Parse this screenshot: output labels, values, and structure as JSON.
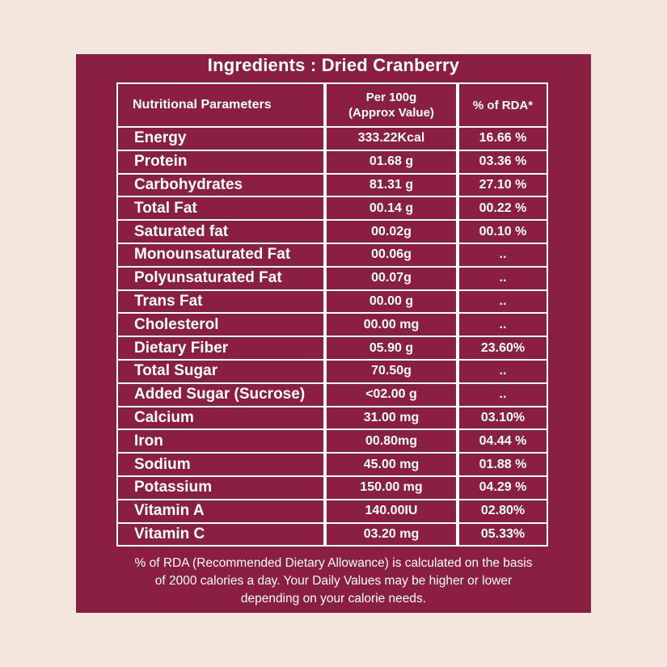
{
  "title": "Ingredients : Dried Cranberry",
  "headers": {
    "parameter": "Nutritional Parameters",
    "value_line1": "Per 100g",
    "value_line2": "(Approx Value)",
    "rda": "% of RDA*"
  },
  "rows": [
    {
      "name": "Energy",
      "value": "333.22Kcal",
      "rda": "16.66 %"
    },
    {
      "name": "Protein",
      "value": "01.68 g",
      "rda": "03.36 %"
    },
    {
      "name": "Carbohydrates",
      "value": "81.31 g",
      "rda": "27.10 %"
    },
    {
      "name": "Total Fat",
      "value": "00.14 g",
      "rda": "00.22 %"
    },
    {
      "name": "Saturated fat",
      "value": "00.02g",
      "rda": "00.10 %"
    },
    {
      "name": "Monounsaturated Fat",
      "value": "00.06g",
      "rda": ".."
    },
    {
      "name": "Polyunsaturated Fat",
      "value": "00.07g",
      "rda": ".."
    },
    {
      "name": "Trans Fat",
      "value": "00.00 g",
      "rda": ".."
    },
    {
      "name": "Cholesterol",
      "value": "00.00 mg",
      "rda": ".."
    },
    {
      "name": "Dietary Fiber",
      "value": "05.90 g",
      "rda": "23.60%"
    },
    {
      "name": "Total Sugar",
      "value": "70.50g",
      "rda": ".."
    },
    {
      "name": "Added Sugar (Sucrose)",
      "value": "<02.00 g",
      "rda": ".."
    },
    {
      "name": "Calcium",
      "value": "31.00 mg",
      "rda": "03.10%"
    },
    {
      "name": "Iron",
      "value": "00.80mg",
      "rda": "04.44 %"
    },
    {
      "name": "Sodium",
      "value": "45.00 mg",
      "rda": "01.88 %"
    },
    {
      "name": "Potassium",
      "value": "150.00 mg",
      "rda": "04.29 %"
    },
    {
      "name": "Vitamin A",
      "value": "140.00IU",
      "rda": "02.80%"
    },
    {
      "name": "Vitamin C",
      "value": "03.20 mg",
      "rda": "05.33%"
    }
  ],
  "footnote": {
    "line1": "% of RDA (Recommended Dietary Allowance) is calculated on the basis",
    "line2": "of 2000 calories a day. Your Daily Values may be higher or lower",
    "line3": "depending on your calorie needs."
  },
  "colors": {
    "panel": "#8a1f42",
    "background": "#f3e6dc",
    "text": "#ffffff"
  }
}
